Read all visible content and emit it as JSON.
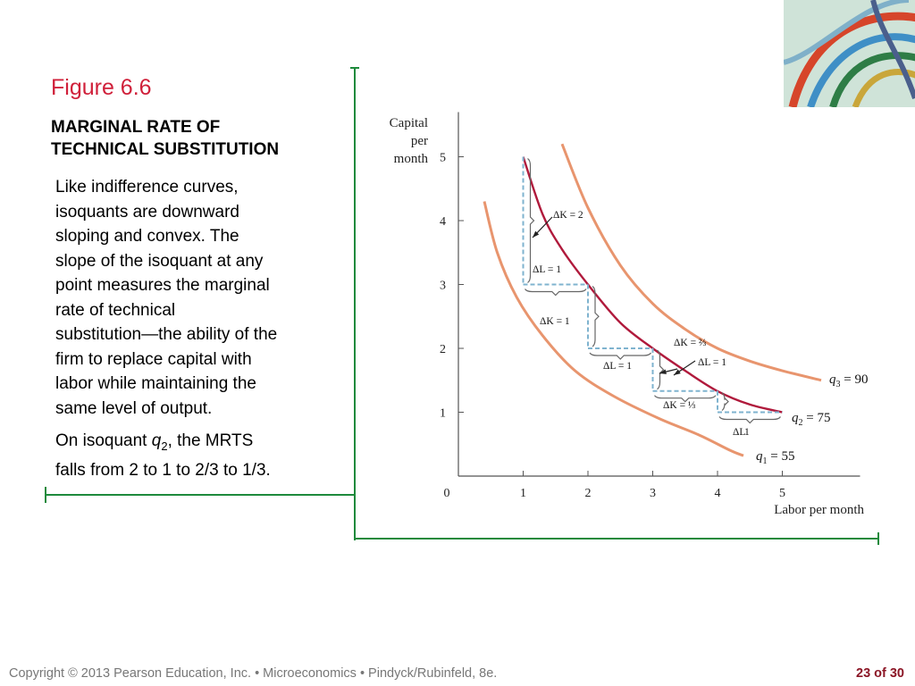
{
  "slide": {
    "figure_label": "Figure 6.6",
    "subtitle_line1": "MARGINAL RATE OF",
    "subtitle_line2": "TECHNICAL SUBSTITUTION",
    "body_lines": [
      "Like indifference curves,",
      "isoquants are downward",
      "sloping and convex. The",
      "slope of the isoquant at any",
      "point measures the marginal",
      "rate of technical",
      "substitution—the ability of the",
      "firm to replace capital with",
      "labor while maintaining the",
      "same level of output."
    ],
    "note_prefix": "On isoquant ",
    "note_var": "q",
    "note_sub": "2",
    "note_line1_rest": ", the MRTS",
    "note_line2": "falls from 2 to 1 to 2/3 to 1/3.",
    "copyright": "Copyright © 2013  Pearson Education, Inc. •  Microeconomics  •  Pindyck/Rubinfeld, 8e.",
    "page": "23 of 30",
    "accent_color": "#d0203a",
    "frame_color": "#1e8a3c"
  },
  "chart_data": {
    "type": "line",
    "ylabel_lines": [
      "Capital",
      "per",
      "month"
    ],
    "xlabel": "Labor per month",
    "x_ticks": [
      "0",
      "1",
      "2",
      "3",
      "4",
      "5"
    ],
    "y_ticks": [
      "1",
      "2",
      "3",
      "4",
      "5"
    ],
    "xlim": [
      0,
      6.2
    ],
    "ylim": [
      0,
      5.7
    ],
    "series": [
      {
        "name": "q1 = 55",
        "var": "q",
        "sub": "1",
        "value": "= 55",
        "color": "#e8956e",
        "points": [
          [
            0.4,
            4.3
          ],
          [
            0.6,
            3.5
          ],
          [
            0.9,
            2.8
          ],
          [
            1.3,
            2.2
          ],
          [
            1.8,
            1.65
          ],
          [
            2.4,
            1.25
          ],
          [
            3.1,
            0.9
          ],
          [
            3.7,
            0.65
          ],
          [
            4.2,
            0.4
          ],
          [
            4.4,
            0.32
          ]
        ]
      },
      {
        "name": "q2 = 75",
        "var": "q",
        "sub": "2",
        "value": "= 75",
        "color": "#b01a3c",
        "points": [
          [
            1.0,
            5.0
          ],
          [
            1.3,
            4.1
          ],
          [
            1.6,
            3.55
          ],
          [
            2.0,
            3.0
          ],
          [
            2.5,
            2.4
          ],
          [
            3.0,
            2.0
          ],
          [
            3.5,
            1.65
          ],
          [
            4.0,
            1.33
          ],
          [
            4.5,
            1.12
          ],
          [
            5.0,
            1.0
          ]
        ]
      },
      {
        "name": "q3 = 90",
        "var": "q",
        "sub": "3",
        "value": "= 90",
        "color": "#e8956e",
        "points": [
          [
            1.6,
            5.2
          ],
          [
            2.0,
            4.2
          ],
          [
            2.5,
            3.3
          ],
          [
            3.0,
            2.7
          ],
          [
            3.5,
            2.3
          ],
          [
            4.0,
            2.0
          ],
          [
            4.5,
            1.8
          ],
          [
            5.0,
            1.65
          ],
          [
            5.6,
            1.5
          ]
        ]
      }
    ],
    "steps": [
      {
        "from": [
          1,
          5
        ],
        "to": [
          2,
          3
        ],
        "dK": "2",
        "dL": "1"
      },
      {
        "from": [
          2,
          3
        ],
        "to": [
          3,
          2
        ],
        "dK": "1",
        "dL": "1"
      },
      {
        "from": [
          3,
          2
        ],
        "to": [
          4,
          1.333
        ],
        "dK": "2/3",
        "dL": "1"
      },
      {
        "from": [
          4,
          1.333
        ],
        "to": [
          5,
          1
        ],
        "dK": "1/3",
        "dL": "1"
      }
    ],
    "annotations": [
      {
        "text": "ΔK = 2"
      },
      {
        "text": "ΔL = 1"
      },
      {
        "text": "ΔK = 1"
      },
      {
        "text": "ΔL = 1"
      },
      {
        "text": "ΔK = ⅔"
      },
      {
        "text": "ΔL = 1"
      },
      {
        "text": "ΔK = ⅓"
      },
      {
        "text": "ΔL"
      },
      {
        "text": "1"
      }
    ]
  }
}
